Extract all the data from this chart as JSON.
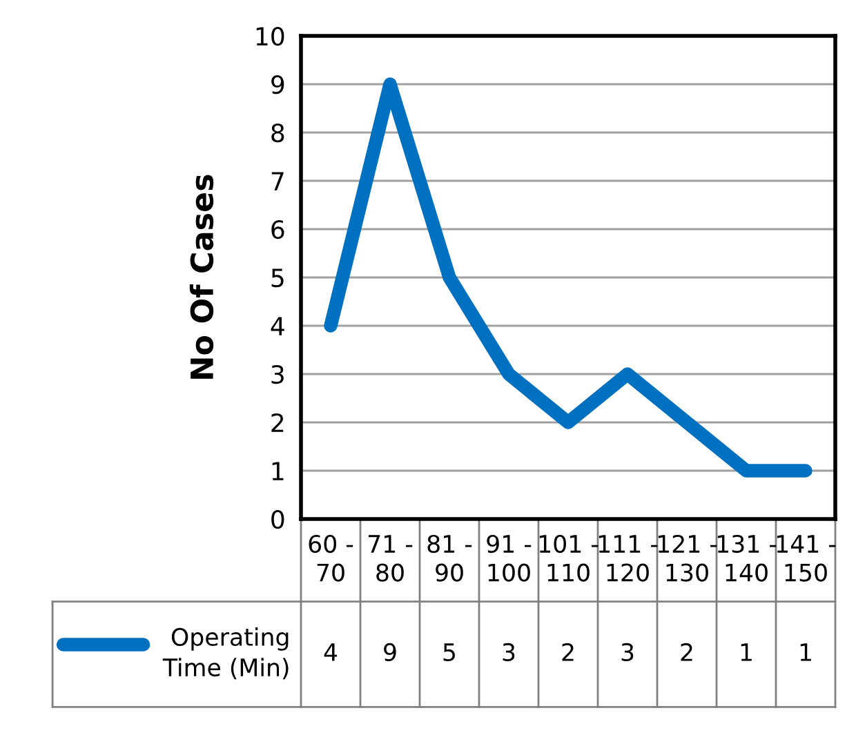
{
  "chart_data": {
    "type": "line",
    "ylabel": "No Of Cases",
    "categories": [
      "60 - 70",
      "71 - 80",
      "81 - 90",
      "91 - 100",
      "101 - 110",
      "111 - 120",
      "121 - 130",
      "131 - 140",
      "141 - 150"
    ],
    "series": [
      {
        "name": "Operating Time (Min)",
        "color": "#0070c0",
        "values": [
          4,
          9,
          5,
          3,
          2,
          3,
          2,
          1,
          1
        ]
      }
    ],
    "ylim": [
      0,
      10
    ],
    "yticks": [
      0,
      1,
      2,
      3,
      4,
      5,
      6,
      7,
      8,
      9,
      10
    ],
    "grid": "y",
    "data_labels": true,
    "marker": "none",
    "line_style": "solid"
  }
}
